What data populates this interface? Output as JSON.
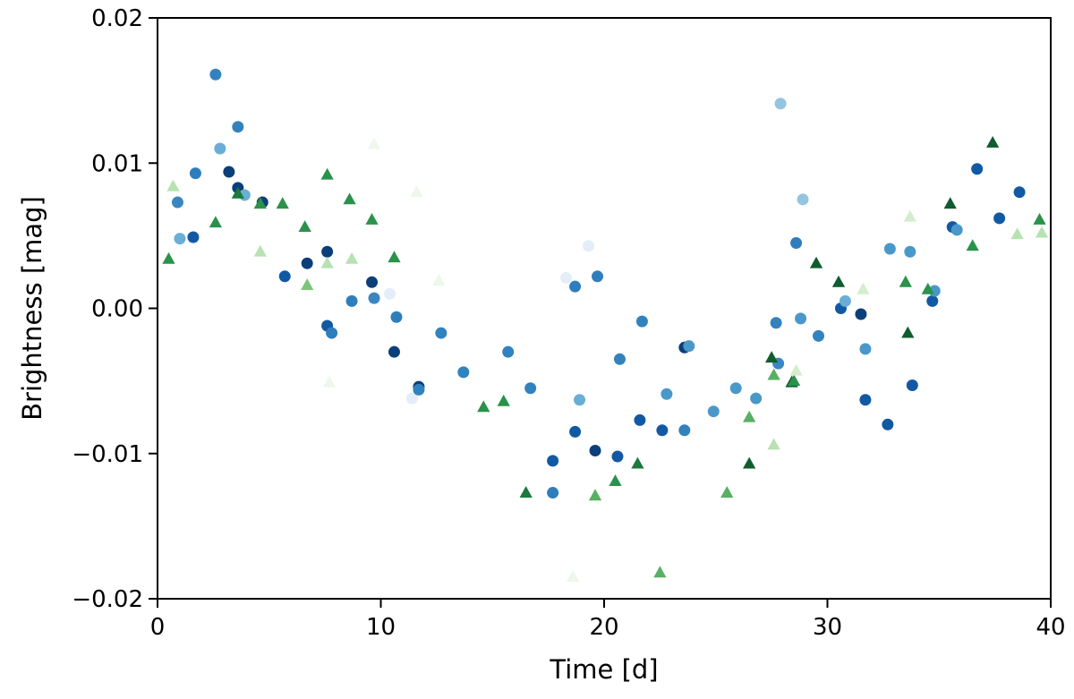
{
  "chart_data": {
    "type": "scatter",
    "title": "",
    "xlabel": "Time [d]",
    "ylabel": "Brightness [mag]",
    "xlim": [
      0,
      40
    ],
    "ylim": [
      -0.02,
      0.02
    ],
    "x_ticks": [
      0,
      10,
      20,
      30,
      40
    ],
    "x_tick_labels": [
      "0",
      "10",
      "20",
      "30",
      "40"
    ],
    "y_ticks": [
      -0.02,
      -0.01,
      0.0,
      0.01,
      0.02
    ],
    "y_tick_labels": [
      "−0.02",
      "−0.01",
      "0.00",
      "0.01",
      "0.02"
    ],
    "grid": false,
    "legend": "none",
    "series": [
      {
        "marker": "circle",
        "colormap": "blues",
        "points": [
          {
            "x": 0.9,
            "y": 0.0073,
            "color": "#3a86c2"
          },
          {
            "x": 1.0,
            "y": 0.0048,
            "color": "#6aaed6"
          },
          {
            "x": 1.6,
            "y": 0.0049,
            "color": "#1259a4"
          },
          {
            "x": 1.7,
            "y": 0.0093,
            "color": "#2f7ebc"
          },
          {
            "x": 2.6,
            "y": 0.0161,
            "color": "#3282be"
          },
          {
            "x": 2.8,
            "y": 0.011,
            "color": "#6aaed6"
          },
          {
            "x": 3.2,
            "y": 0.0094,
            "color": "#0b3f7a"
          },
          {
            "x": 3.6,
            "y": 0.0125,
            "color": "#3282be"
          },
          {
            "x": 3.6,
            "y": 0.0083,
            "color": "#0b3f7a"
          },
          {
            "x": 3.9,
            "y": 0.0078,
            "color": "#6aaed6"
          },
          {
            "x": 4.7,
            "y": 0.0073,
            "color": "#0b3f7a"
          },
          {
            "x": 5.7,
            "y": 0.0022,
            "color": "#1259a4"
          },
          {
            "x": 6.7,
            "y": 0.0031,
            "color": "#0b3f7a"
          },
          {
            "x": 7.6,
            "y": 0.0039,
            "color": "#0b3f7a"
          },
          {
            "x": 7.6,
            "y": -0.0012,
            "color": "#1259a4"
          },
          {
            "x": 7.8,
            "y": -0.0017,
            "color": "#2f7ebc"
          },
          {
            "x": 8.7,
            "y": 0.0005,
            "color": "#2f7ebc"
          },
          {
            "x": 9.6,
            "y": 0.0018,
            "color": "#0b3f7a"
          },
          {
            "x": 9.7,
            "y": 0.0007,
            "color": "#3a86c2"
          },
          {
            "x": 10.4,
            "y": 0.001,
            "color": "#e3eef9"
          },
          {
            "x": 10.6,
            "y": -0.003,
            "color": "#0b3f7a"
          },
          {
            "x": 10.7,
            "y": -0.0006,
            "color": "#2f7ebc"
          },
          {
            "x": 11.4,
            "y": -0.0062,
            "color": "#e3eef9"
          },
          {
            "x": 11.7,
            "y": -0.0054,
            "color": "#0b3f7a"
          },
          {
            "x": 11.7,
            "y": -0.0056,
            "color": "#3282be"
          },
          {
            "x": 12.7,
            "y": -0.0017,
            "color": "#3282be"
          },
          {
            "x": 13.7,
            "y": -0.0044,
            "color": "#3282be"
          },
          {
            "x": 15.7,
            "y": -0.003,
            "color": "#3282be"
          },
          {
            "x": 16.7,
            "y": -0.0055,
            "color": "#3282be"
          },
          {
            "x": 17.7,
            "y": -0.0105,
            "color": "#1259a4"
          },
          {
            "x": 17.7,
            "y": -0.0127,
            "color": "#2f7ebc"
          },
          {
            "x": 18.3,
            "y": 0.0021,
            "color": "#e3eef9"
          },
          {
            "x": 18.7,
            "y": -0.0085,
            "color": "#1259a4"
          },
          {
            "x": 18.7,
            "y": 0.0015,
            "color": "#2f7ebc"
          },
          {
            "x": 18.9,
            "y": -0.0063,
            "color": "#6aaed6"
          },
          {
            "x": 19.3,
            "y": 0.0043,
            "color": "#e3eef9"
          },
          {
            "x": 19.6,
            "y": -0.0098,
            "color": "#0b3f7a"
          },
          {
            "x": 19.7,
            "y": 0.0022,
            "color": "#2f7ebc"
          },
          {
            "x": 20.6,
            "y": -0.0102,
            "color": "#1259a4"
          },
          {
            "x": 20.7,
            "y": -0.0035,
            "color": "#3282be"
          },
          {
            "x": 21.6,
            "y": -0.0077,
            "color": "#1259a4"
          },
          {
            "x": 21.7,
            "y": -0.0009,
            "color": "#3282be"
          },
          {
            "x": 22.6,
            "y": -0.0084,
            "color": "#1259a4"
          },
          {
            "x": 22.8,
            "y": -0.0059,
            "color": "#4a98c9"
          },
          {
            "x": 23.6,
            "y": -0.0027,
            "color": "#0b3f7a"
          },
          {
            "x": 23.6,
            "y": -0.0084,
            "color": "#3282be"
          },
          {
            "x": 23.8,
            "y": -0.0026,
            "color": "#4a98c9"
          },
          {
            "x": 24.9,
            "y": -0.0071,
            "color": "#4a98c9"
          },
          {
            "x": 25.9,
            "y": -0.0055,
            "color": "#4a98c9"
          },
          {
            "x": 26.8,
            "y": -0.0062,
            "color": "#4a98c9"
          },
          {
            "x": 27.7,
            "y": -0.001,
            "color": "#3282be"
          },
          {
            "x": 27.8,
            "y": -0.0038,
            "color": "#3a86c2"
          },
          {
            "x": 27.9,
            "y": 0.0141,
            "color": "#94c4df"
          },
          {
            "x": 28.6,
            "y": 0.0045,
            "color": "#2f7ebc"
          },
          {
            "x": 28.8,
            "y": -0.0007,
            "color": "#4a98c9"
          },
          {
            "x": 28.9,
            "y": 0.0075,
            "color": "#94c4df"
          },
          {
            "x": 29.6,
            "y": -0.0019,
            "color": "#3282be"
          },
          {
            "x": 30.6,
            "y": 0.0,
            "color": "#1259a4"
          },
          {
            "x": 30.8,
            "y": 0.0005,
            "color": "#6aaed6"
          },
          {
            "x": 31.5,
            "y": -0.0004,
            "color": "#0b3f7a"
          },
          {
            "x": 31.7,
            "y": -0.0028,
            "color": "#4a98c9"
          },
          {
            "x": 31.7,
            "y": -0.0063,
            "color": "#1259a4"
          },
          {
            "x": 32.7,
            "y": -0.008,
            "color": "#1259a4"
          },
          {
            "x": 32.8,
            "y": 0.0041,
            "color": "#4a98c9"
          },
          {
            "x": 33.7,
            "y": 0.0039,
            "color": "#4a98c9"
          },
          {
            "x": 33.8,
            "y": -0.0053,
            "color": "#1259a4"
          },
          {
            "x": 34.7,
            "y": 0.0005,
            "color": "#1259a4"
          },
          {
            "x": 34.8,
            "y": 0.0012,
            "color": "#4a98c9"
          },
          {
            "x": 35.6,
            "y": 0.0056,
            "color": "#1259a4"
          },
          {
            "x": 35.8,
            "y": 0.0054,
            "color": "#4a98c9"
          },
          {
            "x": 36.7,
            "y": 0.0096,
            "color": "#1259a4"
          },
          {
            "x": 37.7,
            "y": 0.0062,
            "color": "#1259a4"
          },
          {
            "x": 38.6,
            "y": 0.008,
            "color": "#1259a4"
          }
        ]
      },
      {
        "marker": "triangle",
        "colormap": "greens",
        "points": [
          {
            "x": 0.5,
            "y": 0.0034,
            "color": "#2a924a"
          },
          {
            "x": 0.7,
            "y": 0.0084,
            "color": "#b7e2b1"
          },
          {
            "x": 2.6,
            "y": 0.0059,
            "color": "#2a924a"
          },
          {
            "x": 3.6,
            "y": 0.0079,
            "color": "#1b7a3c"
          },
          {
            "x": 4.6,
            "y": 0.0039,
            "color": "#b7e2b1"
          },
          {
            "x": 4.6,
            "y": 0.0072,
            "color": "#2a924a"
          },
          {
            "x": 5.6,
            "y": 0.0072,
            "color": "#2a924a"
          },
          {
            "x": 6.6,
            "y": 0.0056,
            "color": "#2a924a"
          },
          {
            "x": 6.7,
            "y": 0.0016,
            "color": "#7cc47a"
          },
          {
            "x": 7.6,
            "y": 0.0092,
            "color": "#2a924a"
          },
          {
            "x": 7.6,
            "y": 0.0031,
            "color": "#b7e2b1"
          },
          {
            "x": 7.7,
            "y": -0.0051,
            "color": "#eef7ea"
          },
          {
            "x": 8.6,
            "y": 0.0075,
            "color": "#2a924a"
          },
          {
            "x": 8.7,
            "y": 0.0034,
            "color": "#b7e2b1"
          },
          {
            "x": 9.6,
            "y": 0.0061,
            "color": "#2a924a"
          },
          {
            "x": 9.7,
            "y": 0.0113,
            "color": "#eef7ea"
          },
          {
            "x": 10.6,
            "y": 0.0035,
            "color": "#2a924a"
          },
          {
            "x": 11.6,
            "y": 0.008,
            "color": "#eef7ea"
          },
          {
            "x": 12.6,
            "y": 0.0019,
            "color": "#eef7ea"
          },
          {
            "x": 14.6,
            "y": -0.0068,
            "color": "#2a924a"
          },
          {
            "x": 15.5,
            "y": -0.0064,
            "color": "#2a924a"
          },
          {
            "x": 16.5,
            "y": -0.0127,
            "color": "#1b7a3c"
          },
          {
            "x": 18.6,
            "y": -0.0185,
            "color": "#eef7ea"
          },
          {
            "x": 19.6,
            "y": -0.0129,
            "color": "#58b062"
          },
          {
            "x": 20.5,
            "y": -0.0119,
            "color": "#2a924a"
          },
          {
            "x": 21.5,
            "y": -0.0107,
            "color": "#1b7a3c"
          },
          {
            "x": 22.5,
            "y": -0.0182,
            "color": "#58b062"
          },
          {
            "x": 25.5,
            "y": -0.0127,
            "color": "#58b062"
          },
          {
            "x": 26.5,
            "y": -0.0075,
            "color": "#58b062"
          },
          {
            "x": 26.5,
            "y": -0.0107,
            "color": "#0f5c2e"
          },
          {
            "x": 27.5,
            "y": -0.0034,
            "color": "#0f5c2e"
          },
          {
            "x": 27.6,
            "y": -0.0046,
            "color": "#58b062"
          },
          {
            "x": 27.6,
            "y": -0.0094,
            "color": "#b7e2b1"
          },
          {
            "x": 28.4,
            "y": -0.0051,
            "color": "#0f5c2e"
          },
          {
            "x": 28.5,
            "y": -0.005,
            "color": "#2a924a"
          },
          {
            "x": 28.6,
            "y": -0.0043,
            "color": "#d3edcd"
          },
          {
            "x": 29.5,
            "y": 0.0031,
            "color": "#0f5c2e"
          },
          {
            "x": 30.5,
            "y": 0.0018,
            "color": "#0f5c2e"
          },
          {
            "x": 31.6,
            "y": 0.0013,
            "color": "#d3edcd"
          },
          {
            "x": 33.5,
            "y": 0.0018,
            "color": "#2a924a"
          },
          {
            "x": 33.6,
            "y": -0.0017,
            "color": "#0f5c2e"
          },
          {
            "x": 33.7,
            "y": 0.0063,
            "color": "#d3edcd"
          },
          {
            "x": 34.5,
            "y": 0.0013,
            "color": "#2a924a"
          },
          {
            "x": 35.5,
            "y": 0.0072,
            "color": "#0f5c2e"
          },
          {
            "x": 36.5,
            "y": 0.0043,
            "color": "#2a924a"
          },
          {
            "x": 37.4,
            "y": 0.0114,
            "color": "#0f5c2e"
          },
          {
            "x": 38.5,
            "y": 0.0051,
            "color": "#b7e2b1"
          },
          {
            "x": 39.5,
            "y": 0.0061,
            "color": "#2a924a"
          },
          {
            "x": 39.6,
            "y": 0.0052,
            "color": "#b7e2b1"
          }
        ]
      }
    ]
  }
}
